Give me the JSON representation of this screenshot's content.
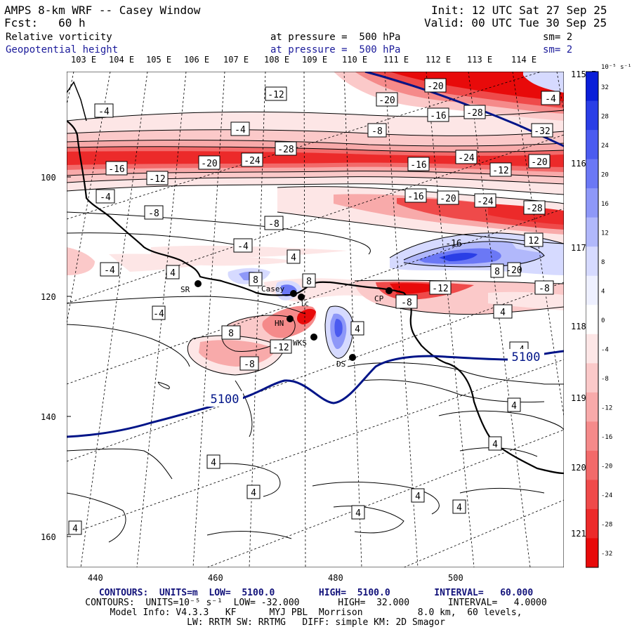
{
  "header": {
    "title": "AMPS 8-km WRF -- Casey Window",
    "init": "Init: 12 UTC Sat 27 Sep 25",
    "fcst": "Fcst:   60 h",
    "valid": "Valid: 00 UTC Tue 30 Sep 25",
    "field1_name": "Relative vorticity",
    "field1_level": "at pressure =  500 hPa",
    "field1_sm": "sm= 2",
    "field2_name": "Geopotential height",
    "field2_level": "at pressure =  500 hPa",
    "field2_sm": "sm= 2"
  },
  "top_lon_labels": [
    "103 E",
    "104 E",
    "105 E",
    "106 E",
    "107 E",
    "108 E",
    "109 E",
    "110 E",
    "111 E",
    "112 E",
    "113 E",
    "114 E"
  ],
  "right_lon_labels": [
    "115 E",
    "116 E",
    "117 E",
    "118 E",
    "119 E",
    "120 E",
    "121 E"
  ],
  "x_ticks": [
    "440",
    "460",
    "480",
    "500"
  ],
  "y_ticks": [
    "100",
    "120",
    "140",
    "160"
  ],
  "colorbar": {
    "unit": "10⁻⁵ s⁻¹",
    "labels": [
      "32",
      "28",
      "24",
      "20",
      "16",
      "12",
      "8",
      "4",
      "0",
      "-4",
      "-8",
      "-12",
      "-16",
      "-20",
      "-24",
      "-28",
      "-32"
    ],
    "colors": [
      "#0a1ed8",
      "#2a3ee6",
      "#4b5bf0",
      "#6b78f5",
      "#8e98f8",
      "#b1b8fb",
      "#d6daff",
      "#eef0ff",
      "#ffffff",
      "#fde6e6",
      "#fbc9c9",
      "#f8aaaa",
      "#f58a8a",
      "#f26a6a",
      "#ef4a4a",
      "#ec2a2a",
      "#e80a0a"
    ]
  },
  "stations": [
    {
      "code": "SR"
    },
    {
      "code": "Casey"
    },
    {
      "code": "HN"
    },
    {
      "code": "WKS"
    },
    {
      "code": "DS"
    },
    {
      "code": "CP"
    },
    {
      "code": "LC"
    }
  ],
  "contour_labels": [
    "-4",
    "-12",
    "-20",
    "-20",
    "-4",
    "-16",
    "-28",
    "-32",
    "-4",
    "-8",
    "-4",
    "-28",
    "-24",
    "-24",
    "-16",
    "-20",
    "-16",
    "-12",
    "-20",
    "-4",
    "-12",
    "-16",
    "-20",
    "-24",
    "-28",
    "-8",
    "-8",
    "-4",
    "-16",
    "12",
    "-4",
    "4",
    "8",
    "4",
    "8",
    "8",
    "4",
    "-20",
    "-12",
    "-8",
    "-8",
    "4",
    "-4",
    "8",
    "-12",
    "-8",
    "-4",
    "5100",
    "5100",
    "4",
    "4",
    "4",
    "4",
    "4",
    "4",
    "4",
    "4"
  ],
  "height_label": "5100",
  "footer": {
    "line1": "CONTOURS:  UNITS=m  LOW=  5100.0        HIGH=  5100.0        INTERVAL=   60.000",
    "line2": "CONTOURS:  UNITS=10⁻⁵ s⁻¹  LOW= -32.000       HIGH=  32.000       INTERVAL=   4.0000",
    "line3": "Model Info: V4.3.3   KF      MYJ PBL  Morrison          8.0 km,  60 levels,",
    "line4": "LW: RRTM SW: RRTMG   DIFF: simple KM: 2D Smagor"
  }
}
